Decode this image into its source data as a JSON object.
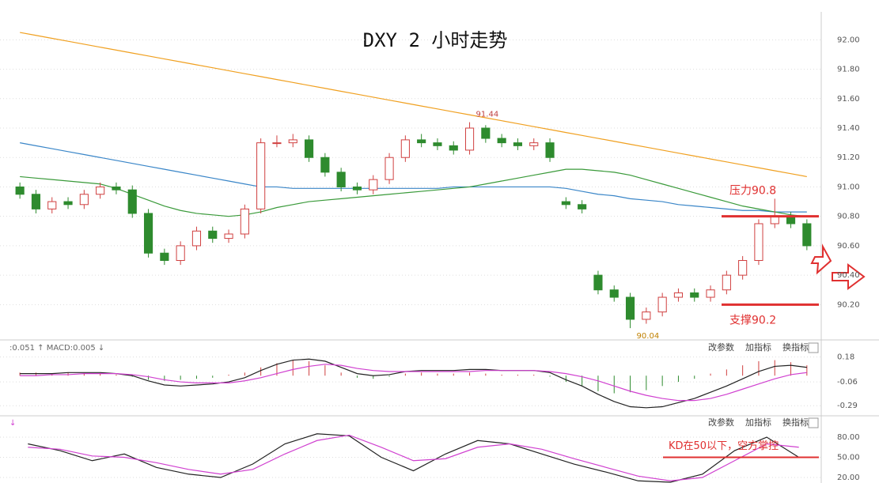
{
  "chart_data": [
    {
      "type": "candlestick",
      "title": "DXY 2 小时走势",
      "up_color": "#d04040",
      "down_color": "#2e8b2e",
      "open": [
        91.0,
        90.95,
        90.85,
        90.9,
        90.88,
        90.95,
        91.0,
        90.98,
        90.82,
        90.55,
        90.5,
        90.6,
        90.7,
        90.65,
        90.68,
        90.85,
        91.3,
        91.3,
        91.32,
        91.2,
        91.1,
        91.0,
        90.98,
        91.05,
        91.2,
        91.32,
        91.3,
        91.28,
        91.25,
        91.4,
        91.33,
        91.3,
        91.28,
        91.3,
        90.9,
        90.88,
        90.4,
        90.3,
        90.25,
        90.1,
        90.15,
        90.25,
        90.28,
        90.25,
        90.3,
        90.4,
        90.5,
        90.75,
        90.8,
        90.75
      ],
      "high": [
        91.03,
        90.98,
        90.93,
        90.93,
        90.98,
        91.03,
        91.03,
        91.01,
        90.85,
        90.58,
        90.63,
        90.73,
        90.73,
        90.71,
        90.88,
        91.33,
        91.35,
        91.36,
        91.35,
        91.23,
        91.13,
        91.03,
        91.08,
        91.23,
        91.35,
        91.36,
        91.33,
        91.31,
        91.44,
        91.42,
        91.36,
        91.33,
        91.33,
        91.33,
        90.93,
        90.91,
        90.43,
        90.33,
        90.28,
        90.18,
        90.28,
        90.31,
        90.31,
        90.33,
        90.43,
        90.53,
        90.78,
        90.92,
        90.83,
        90.78
      ],
      "low": [
        90.92,
        90.82,
        90.82,
        90.85,
        90.85,
        90.92,
        90.95,
        90.79,
        90.52,
        90.47,
        90.47,
        90.57,
        90.62,
        90.62,
        90.65,
        90.82,
        91.27,
        91.27,
        91.17,
        91.07,
        90.97,
        90.95,
        90.95,
        91.02,
        91.17,
        91.27,
        91.25,
        91.22,
        91.22,
        91.3,
        91.27,
        91.25,
        91.25,
        91.17,
        90.85,
        90.82,
        90.27,
        90.22,
        90.04,
        90.07,
        90.12,
        90.22,
        90.22,
        90.22,
        90.27,
        90.37,
        90.47,
        90.72,
        90.72,
        90.57
      ],
      "close": [
        90.95,
        90.85,
        90.9,
        90.88,
        90.95,
        91.0,
        90.98,
        90.82,
        90.55,
        90.5,
        90.6,
        90.7,
        90.65,
        90.68,
        90.85,
        91.3,
        91.3,
        91.32,
        91.2,
        91.1,
        91.0,
        90.98,
        91.05,
        91.2,
        91.32,
        91.3,
        91.28,
        91.25,
        91.4,
        91.33,
        91.3,
        91.28,
        91.3,
        91.2,
        90.88,
        90.85,
        90.3,
        90.25,
        90.1,
        90.15,
        90.25,
        90.28,
        90.25,
        90.3,
        90.4,
        90.5,
        90.75,
        90.8,
        90.75,
        90.6
      ],
      "series": [
        {
          "color": "#f0a020",
          "values": [
            92.05,
            92.03,
            92.01,
            91.99,
            91.97,
            91.95,
            91.93,
            91.91,
            91.89,
            91.87,
            91.85,
            91.83,
            91.81,
            91.79,
            91.77,
            91.75,
            91.73,
            91.71,
            91.69,
            91.67,
            91.65,
            91.63,
            91.61,
            91.59,
            91.57,
            91.55,
            91.53,
            91.51,
            91.49,
            91.47,
            91.45,
            91.43,
            91.41,
            91.39,
            91.37,
            91.35,
            91.33,
            91.31,
            91.29,
            91.27,
            91.25,
            91.23,
            91.21,
            91.19,
            91.17,
            91.15,
            91.13,
            91.11,
            91.09,
            91.07
          ]
        },
        {
          "color": "#3a86c8",
          "values": [
            91.3,
            91.28,
            91.26,
            91.24,
            91.22,
            91.2,
            91.18,
            91.16,
            91.14,
            91.12,
            91.1,
            91.08,
            91.06,
            91.04,
            91.02,
            91.0,
            91.0,
            90.99,
            90.99,
            90.99,
            90.99,
            90.99,
            90.99,
            90.99,
            90.99,
            90.99,
            90.99,
            91.0,
            91.0,
            91.0,
            91.0,
            91.0,
            91.0,
            91.0,
            90.99,
            90.97,
            90.95,
            90.94,
            90.92,
            90.91,
            90.9,
            90.88,
            90.87,
            90.86,
            90.85,
            90.84,
            90.84,
            90.83,
            90.83,
            90.83
          ]
        },
        {
          "color": "#3a9a3a",
          "values": [
            91.07,
            91.06,
            91.05,
            91.04,
            91.03,
            91.02,
            90.99,
            90.95,
            90.91,
            90.87,
            90.84,
            90.82,
            90.81,
            90.8,
            90.81,
            90.83,
            90.86,
            90.88,
            90.9,
            90.91,
            90.92,
            90.93,
            90.94,
            90.95,
            90.96,
            90.97,
            90.98,
            90.99,
            91.0,
            91.02,
            91.04,
            91.06,
            91.08,
            91.1,
            91.12,
            91.12,
            91.11,
            91.1,
            91.08,
            91.05,
            91.02,
            90.99,
            90.96,
            90.93,
            90.9,
            90.87,
            90.85,
            90.83,
            90.81,
            90.8
          ]
        }
      ],
      "extreme_labels": [
        91.44,
        90.04
      ],
      "levels": [
        {
          "label": "压力90.8",
          "value": 90.8
        },
        {
          "label": "支撑90.2",
          "value": 90.2
        }
      ],
      "level_color": "#e03030",
      "ylim": [
        89.96,
        92.19
      ],
      "yticks": [
        {
          "value": 92,
          "label": "92.00"
        },
        {
          "value": 91.8,
          "label": "91.80"
        },
        {
          "value": 91.6,
          "label": "91.60"
        },
        {
          "value": 91.4,
          "label": "91.40"
        },
        {
          "value": 91.2,
          "label": "91.20"
        },
        {
          "value": 91,
          "label": "91.00"
        },
        {
          "value": 90.8,
          "label": "90.80"
        },
        {
          "value": 90.6,
          "label": "90.60"
        },
        {
          "value": 90.4,
          "label": "90.40"
        },
        {
          "value": 90.2,
          "label": "90.20"
        }
      ]
    },
    {
      "type": "macd",
      "header": ":0.051 ↑ MACD:0.005 ↓",
      "buttons": [
        "改参数",
        "加指标",
        "换指标"
      ],
      "values": [
        0.03,
        0.03,
        0.02,
        0.03,
        0.02,
        0.02,
        0.01,
        -0.01,
        -0.04,
        -0.05,
        -0.04,
        -0.03,
        -0.02,
        0.01,
        0.03,
        0.08,
        0.12,
        0.15,
        0.14,
        0.1,
        0.03,
        -0.02,
        -0.03,
        -0.01,
        0.02,
        0.03,
        0.02,
        0.02,
        0.03,
        0.02,
        0.01,
        0.01,
        0.01,
        -0.01,
        -0.06,
        -0.1,
        -0.15,
        -0.17,
        -0.16,
        -0.14,
        -0.1,
        -0.06,
        -0.03,
        0.02,
        0.06,
        0.1,
        0.14,
        0.15,
        0.13,
        0.1
      ],
      "up_color": "#d04040",
      "down_color": "#2e8b2e",
      "series": [
        {
          "color": "#222222",
          "values": [
            0.02,
            0.02,
            0.02,
            0.03,
            0.03,
            0.03,
            0.02,
            0.0,
            -0.05,
            -0.09,
            -0.1,
            -0.09,
            -0.08,
            -0.06,
            -0.02,
            0.05,
            0.11,
            0.15,
            0.16,
            0.14,
            0.08,
            0.02,
            0.0,
            0.01,
            0.04,
            0.05,
            0.05,
            0.05,
            0.06,
            0.06,
            0.05,
            0.05,
            0.05,
            0.03,
            -0.04,
            -0.1,
            -0.18,
            -0.25,
            -0.3,
            -0.31,
            -0.3,
            -0.26,
            -0.22,
            -0.16,
            -0.1,
            -0.03,
            0.04,
            0.09,
            0.1,
            0.08
          ]
        },
        {
          "color": "#d040d0",
          "values": [
            0.0,
            0.0,
            0.01,
            0.01,
            0.02,
            0.02,
            0.02,
            0.01,
            -0.01,
            -0.04,
            -0.06,
            -0.07,
            -0.07,
            -0.07,
            -0.05,
            -0.02,
            0.02,
            0.06,
            0.09,
            0.11,
            0.1,
            0.07,
            0.05,
            0.04,
            0.04,
            0.04,
            0.04,
            0.04,
            0.04,
            0.05,
            0.05,
            0.05,
            0.05,
            0.04,
            0.02,
            -0.01,
            -0.05,
            -0.1,
            -0.15,
            -0.19,
            -0.22,
            -0.24,
            -0.24,
            -0.22,
            -0.18,
            -0.13,
            -0.08,
            -0.03,
            0.01,
            0.03
          ]
        }
      ],
      "ylim": [
        -0.38,
        0.33
      ],
      "yticks": [
        0.18,
        -0.06,
        -0.29
      ]
    },
    {
      "type": "kd",
      "header": "↓",
      "buttons": [
        "改参数",
        "加指标",
        "换指标"
      ],
      "series": [
        {
          "color": "#222222",
          "values": [
            70,
            60,
            45,
            55,
            35,
            25,
            20,
            40,
            70,
            85,
            82,
            50,
            30,
            55,
            75,
            70,
            55,
            40,
            28,
            15,
            13,
            25,
            60,
            80,
            50
          ]
        },
        {
          "color": "#d040d0",
          "values": [
            65,
            62,
            52,
            50,
            42,
            32,
            25,
            32,
            55,
            75,
            83,
            65,
            45,
            48,
            65,
            70,
            62,
            48,
            35,
            22,
            15,
            20,
            45,
            70,
            65
          ]
        }
      ],
      "level": {
        "label": "KD在50以下，空方掌控",
        "value": 50
      },
      "level_color": "#e03030",
      "ylim": [
        11.8,
        110.6
      ],
      "yticks": [
        {
          "value": 80,
          "label": "80.00"
        },
        {
          "value": 50,
          "label": "50.00"
        },
        {
          "value": 20,
          "label": "20.00"
        }
      ]
    }
  ]
}
